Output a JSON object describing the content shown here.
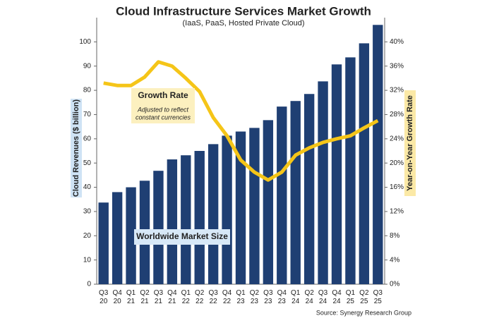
{
  "chart_data": {
    "type": "bar_line",
    "title": "Cloud Infrastructure Services Market Growth",
    "subtitle": "(IaaS, PaaS, Hosted Private Cloud)",
    "y_axis_label": "Cloud Revenues ($ billion)",
    "y2_axis_label": "Year-on-Year Growth Rate",
    "source": "Source: Synergy Research Group",
    "annotations": {
      "growth_title": "Growth Rate",
      "growth_note": [
        "Adjusted to reflect",
        "constant currencies"
      ],
      "market": "Worldwide Market Size"
    },
    "categories": [
      "Q3 20",
      "Q4 20",
      "Q1 21",
      "Q2 21",
      "Q3 21",
      "Q4 21",
      "Q1 22",
      "Q2 22",
      "Q3 22",
      "Q4 22",
      "Q1 23",
      "Q2 23",
      "Q3 23",
      "Q4 23",
      "Q1 24",
      "Q2 24",
      "Q3 24",
      "Q4 24",
      "Q1 25",
      "Q2 25",
      "Q3 25"
    ],
    "series": [
      {
        "name": "Worldwide Market Size",
        "kind": "bar",
        "color": "#1f3f73",
        "values": [
          33.7,
          38,
          40,
          42.7,
          46.8,
          51.5,
          53.2,
          55,
          57.8,
          61.3,
          63,
          64.5,
          67.7,
          73.3,
          75.6,
          78.5,
          83.7,
          90.7,
          93.6,
          99.4,
          107
        ]
      },
      {
        "name": "Growth Rate",
        "kind": "line",
        "axis": "y2",
        "color": "#f5c518",
        "values": [
          33.2,
          32.8,
          32.8,
          34.2,
          36.7,
          36,
          34,
          31.8,
          27.5,
          24.5,
          20.5,
          18.5,
          17.2,
          18.5,
          21.3,
          22.5,
          23.4,
          24,
          24.5,
          25.8,
          27
        ]
      }
    ],
    "ylim": [
      0,
      110
    ],
    "yticks": [
      0,
      10,
      20,
      30,
      40,
      50,
      60,
      70,
      80,
      90,
      100
    ],
    "y2lim": [
      0,
      44
    ],
    "y2ticks": [
      {
        "value": 0,
        "label": "0%"
      },
      {
        "value": 4,
        "label": "4%"
      },
      {
        "value": 8,
        "label": "8%"
      },
      {
        "value": 12,
        "label": "12%"
      },
      {
        "value": 16,
        "label": "16%"
      },
      {
        "value": 20,
        "label": "20%"
      },
      {
        "value": 24,
        "label": "24%"
      },
      {
        "value": 28,
        "label": "28%"
      },
      {
        "value": 32,
        "label": "32%"
      },
      {
        "value": 36,
        "label": "36%"
      },
      {
        "value": 40,
        "label": "40%"
      }
    ]
  }
}
